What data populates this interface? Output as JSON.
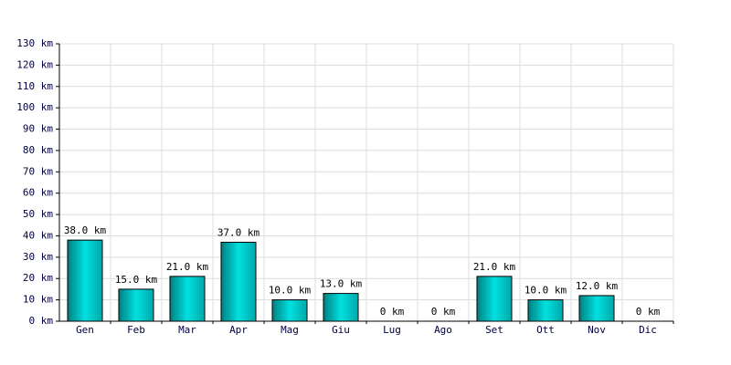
{
  "chart_data": {
    "type": "bar",
    "categories": [
      "Gen",
      "Feb",
      "Mar",
      "Apr",
      "Mag",
      "Giu",
      "Lug",
      "Ago",
      "Set",
      "Ott",
      "Nov",
      "Dic"
    ],
    "values": [
      38,
      15,
      21,
      37,
      10,
      13,
      0,
      0,
      21,
      10,
      12,
      0
    ],
    "value_labels": [
      "38.0 km",
      "15.0 km",
      "21.0 km",
      "37.0 km",
      "10.0 km",
      "13.0 km",
      "0 km",
      "0 km",
      "21.0 km",
      "10.0 km",
      "12.0 km",
      "0 km"
    ],
    "color": "#00e0e0",
    "ylim": [
      0,
      130
    ],
    "yticks": [
      {
        "value": 0,
        "label": "0 km"
      },
      {
        "value": 10,
        "label": "10 km"
      },
      {
        "value": 20,
        "label": "20 km"
      },
      {
        "value": 30,
        "label": "30 km"
      },
      {
        "value": 40,
        "label": "40 km"
      },
      {
        "value": 50,
        "label": "50 km"
      },
      {
        "value": 60,
        "label": "60 km"
      },
      {
        "value": 70,
        "label": "70 km"
      },
      {
        "value": 80,
        "label": "80 km"
      },
      {
        "value": 90,
        "label": "90 km"
      },
      {
        "value": 100,
        "label": "100 km"
      },
      {
        "value": 110,
        "label": "110 km"
      },
      {
        "value": 120,
        "label": "120 km"
      },
      {
        "value": 130,
        "label": "130 km"
      }
    ],
    "grid": true
  }
}
